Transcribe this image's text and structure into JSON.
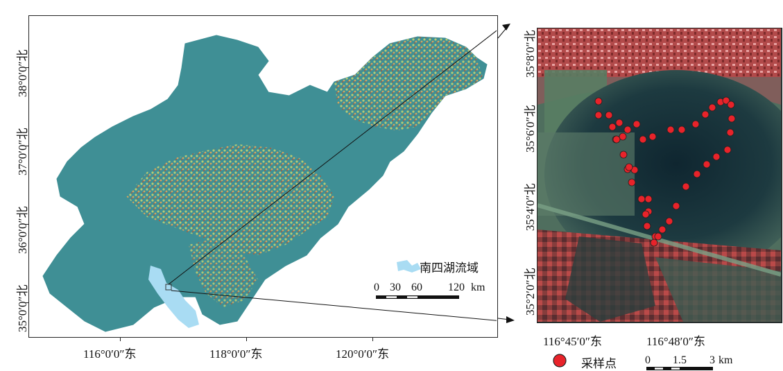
{
  "left_map": {
    "y_ticks": [
      "38°0′0″北",
      "37°0′0″北",
      "36°0′0″北",
      "35°0′0″北"
    ],
    "x_ticks": [
      "116°0′0″东",
      "118°0′0″东",
      "120°0′0″东"
    ],
    "legend_label": "南四湖流域",
    "scale": {
      "labels": [
        "0",
        "30",
        "60",
        "120"
      ],
      "unit": "km"
    }
  },
  "right_map": {
    "y_ticks": [
      "35°8′0″北",
      "35°6′0″北",
      "35°4′0″北",
      "35°2′0″北"
    ],
    "x_ticks": [
      "116°45′0″东",
      "116°48′0″东"
    ],
    "legend_label": "采样点",
    "scale": {
      "labels": [
        "0",
        "1.5",
        "3"
      ],
      "unit": "km"
    },
    "sampling_point_count": 44
  },
  "colors": {
    "land": "#3f8f95",
    "basin": "#a9dcf3",
    "relief": "#e7b867",
    "sample_point": "#e8232a"
  }
}
